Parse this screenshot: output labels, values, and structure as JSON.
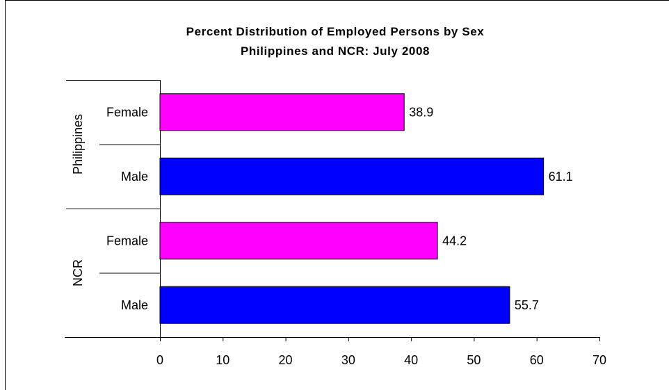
{
  "chart_data": {
    "type": "bar",
    "orientation": "horizontal",
    "title": "Percent Distribution of Employed Persons by Sex",
    "subtitle": "Philippines and NCR: July 2008",
    "groups": [
      {
        "name": "Philippines",
        "categories": [
          "Female",
          "Male"
        ],
        "values": [
          38.9,
          61.1
        ],
        "labels": [
          "38.9",
          "61.1"
        ]
      },
      {
        "name": "NCR",
        "categories": [
          "Female",
          "Male"
        ],
        "values": [
          44.2,
          55.7
        ],
        "labels": [
          "44.2",
          "55.7"
        ]
      }
    ],
    "colors": {
      "Female": "#ff00ff",
      "Male": "#0000ff"
    },
    "xlim": [
      0,
      70
    ],
    "xticks": [
      "0",
      "10",
      "20",
      "30",
      "40",
      "50",
      "60",
      "70"
    ],
    "grid": false,
    "legend": "none"
  }
}
